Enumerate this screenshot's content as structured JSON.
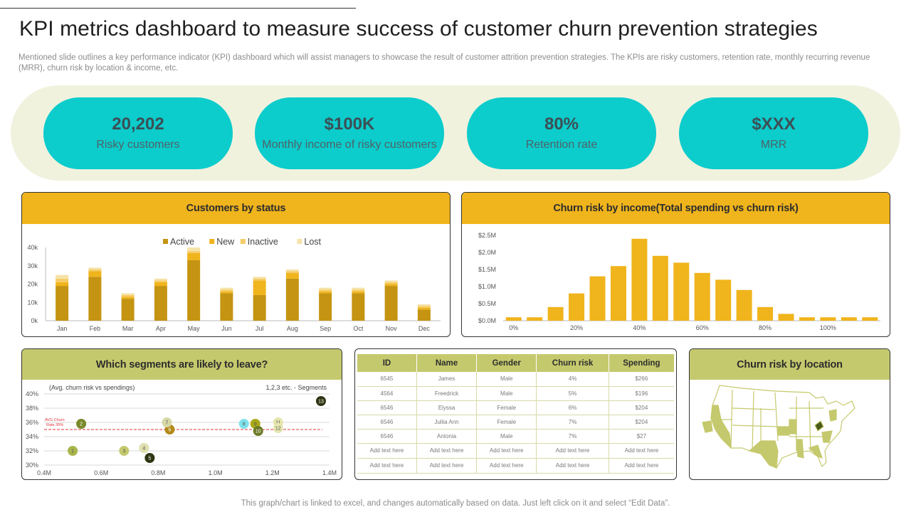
{
  "title": "KPI metrics dashboard to measure success of customer churn prevention strategies",
  "subtitle": "Mentioned slide outlines a key performance indicator (KPI) dashboard which will assist managers to showcase the result of customer attrition prevention strategies. The KPIs are risky customers, retention rate, monthly recurring revenue (MRR), churn risk by location & income, etc.",
  "kpis": [
    {
      "value": "20,202",
      "label": "Risky customers"
    },
    {
      "value": "$100K",
      "label": "Monthly  income of risky customers"
    },
    {
      "value": "80%",
      "label": "Retention rate"
    },
    {
      "value": "$XXX",
      "label": "MRR"
    }
  ],
  "colors": {
    "kpi_fill": "#0ccccc",
    "kpi_band": "#f1f2de",
    "gold_header": "#f0b41c",
    "olive_header": "#c5c96d",
    "active": "#c49412",
    "new": "#f0b41c",
    "inactive": "#f5cc66",
    "lost": "#f5e3a8",
    "income_bar": "#f0b41c",
    "map_fill": "#c5c96d",
    "map_dark": "#4a5a1a"
  },
  "panels": {
    "status": {
      "title": "Customers by status"
    },
    "income": {
      "title": "Churn risk by income(Total spending vs churn risk)"
    },
    "segments": {
      "title": "Which segments are likely to leave?"
    },
    "location": {
      "title": "Churn risk by location"
    }
  },
  "table": {
    "headers": [
      "ID",
      "Name",
      "Gender",
      "Churn risk",
      "Spending"
    ],
    "rows": [
      [
        "6545",
        "James",
        "Male",
        "4%",
        "$266"
      ],
      [
        "4564",
        "Freedrick",
        "Male",
        "5%",
        "$196"
      ],
      [
        "6546",
        "Elyssa",
        "Female",
        "6%",
        "$204"
      ],
      [
        "6546",
        "Jullia Ann",
        "Female",
        "7%",
        "$204"
      ],
      [
        "6546",
        "Antonia",
        "Male",
        "7%",
        "$27"
      ],
      [
        "Add text here",
        "Add text here",
        "Add text here",
        "Add text here",
        "Add text here"
      ],
      [
        "Add text here",
        "Add text here",
        "Add text here",
        "Add text here",
        "Add text here"
      ]
    ]
  },
  "footer": "This graph/chart is linked to excel,  and changes automatically based on data. Just left click on it and select “Edit Data”.",
  "chart_data": [
    {
      "type": "bar",
      "stacked": true,
      "title": "Customers by status",
      "categories": [
        "Jan",
        "Feb",
        "Mar",
        "Apr",
        "May",
        "Jun",
        "Jul",
        "Aug",
        "Sep",
        "Oct",
        "Nov",
        "Dec"
      ],
      "series": [
        {
          "name": "Active",
          "values": [
            19000,
            24000,
            12000,
            19000,
            33000,
            15000,
            14000,
            23000,
            15000,
            15000,
            19000,
            6000
          ]
        },
        {
          "name": "New",
          "values": [
            2000,
            3000,
            1000,
            2000,
            4000,
            1000,
            8000,
            3000,
            1000,
            1000,
            1000,
            1000
          ]
        },
        {
          "name": "Inactive",
          "values": [
            2000,
            1000,
            1000,
            1000,
            1000,
            1000,
            1000,
            1000,
            1000,
            1000,
            1000,
            1000
          ]
        },
        {
          "name": "Lost",
          "values": [
            2000,
            1000,
            1000,
            1000,
            2000,
            1000,
            1000,
            1000,
            1000,
            1000,
            1000,
            1000
          ]
        }
      ],
      "yticks": [
        "0k",
        "10k",
        "20k",
        "30k",
        "40k"
      ],
      "ylim": [
        0,
        40000
      ],
      "legend": "top",
      "grid": false
    },
    {
      "type": "bar",
      "title": "Churn risk by income(Total spending vs churn risk)",
      "x": [
        0,
        6.67,
        13.33,
        20,
        26.67,
        33.33,
        40,
        46.67,
        53.33,
        60,
        66.67,
        73.33,
        80,
        86.67,
        93.33,
        100,
        106.67,
        113.33
      ],
      "values": [
        0.1,
        0.1,
        0.4,
        0.8,
        1.3,
        1.6,
        2.4,
        1.9,
        1.7,
        1.4,
        1.2,
        0.9,
        0.4,
        0.2,
        0.1,
        0.1,
        0.1,
        0.1
      ],
      "xticks": [
        "0%",
        "20%",
        "40%",
        "60%",
        "80%",
        "100%"
      ],
      "yticks": [
        "$0.0M",
        "$0.5M",
        "$1.0M",
        "$1.5M",
        "$2.0M",
        "$2.5M"
      ],
      "ylim": [
        0,
        2.5
      ],
      "grid": false
    },
    {
      "type": "scatter",
      "title": "Which segments are likely to leave?",
      "annotation": "(Avg. churn risk  vs spendings)",
      "segments_note": "1,2,3 etc. - Segments",
      "avg_label": "AVG Churn Rate 35%",
      "avg_value": 35,
      "xticks": [
        "0.4M",
        "0.6M",
        "0.8M",
        "1.0M",
        "1.2M",
        "1.4M"
      ],
      "yticks": [
        "30%",
        "32%",
        "34%",
        "36%",
        "38%",
        "40%"
      ],
      "xlim": [
        0.4,
        1.4
      ],
      "ylim": [
        30,
        40
      ],
      "points": [
        {
          "label": "1",
          "x": 0.5,
          "y": 32,
          "color": "#a9b54a"
        },
        {
          "label": "2",
          "x": 0.53,
          "y": 35.8,
          "color": "#7a8a2a"
        },
        {
          "label": "3",
          "x": 0.68,
          "y": 32,
          "color": "#c5c96d"
        },
        {
          "label": "4",
          "x": 0.75,
          "y": 32.4,
          "color": "#e0e0b0"
        },
        {
          "label": "5",
          "x": 0.77,
          "y": 31,
          "color": "#2e3512"
        },
        {
          "label": "6",
          "x": 0.84,
          "y": 35,
          "color": "#b38a1a"
        },
        {
          "label": "7",
          "x": 0.83,
          "y": 36,
          "color": "#d8d8a8"
        },
        {
          "label": "8",
          "x": 1.1,
          "y": 35.8,
          "color": "#7fe2ea"
        },
        {
          "label": "9",
          "x": 1.14,
          "y": 35.8,
          "color": "#a9a91a"
        },
        {
          "label": "10",
          "x": 1.15,
          "y": 34.8,
          "color": "#6b7a25"
        },
        {
          "label": "11",
          "x": 1.22,
          "y": 36,
          "color": "#e5e5b0"
        },
        {
          "label": "12",
          "x": 1.22,
          "y": 35.2,
          "color": "#e5e5b0"
        },
        {
          "label": "13",
          "x": 1.37,
          "y": 39,
          "color": "#2e3512"
        }
      ],
      "grid": true
    }
  ]
}
